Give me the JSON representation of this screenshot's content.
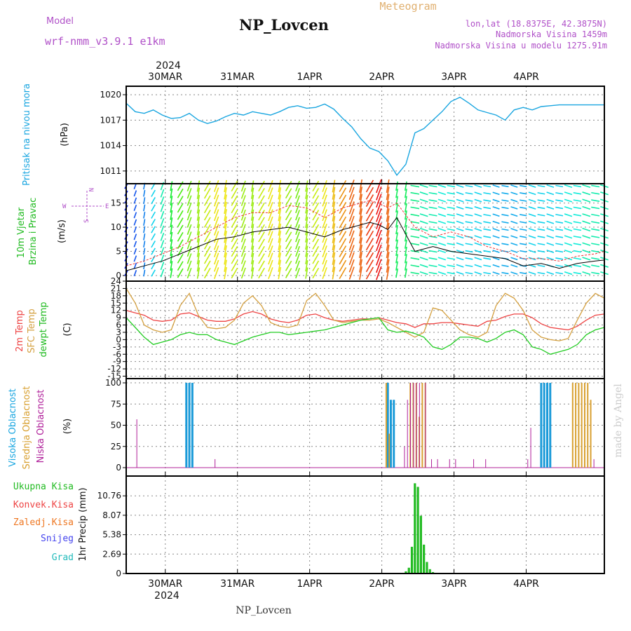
{
  "header": {
    "title": "NP_Lovcen",
    "meteogram_label": "Meteogram",
    "model_label": "Model",
    "model_name": "wrf-nmm_v3.9.1 e1km",
    "lonlat": "lon,lat (18.8375E, 42.3875N)",
    "elevation": "Nadmorska Visina 1459m",
    "model_elevation": "Nadmorska Visina u modelu 1275.91m",
    "footer_name": "NP_Lovcen",
    "credit": "made by Angel"
  },
  "time_axis": {
    "year_label": "2024",
    "day_labels": [
      "30MAR",
      "31MAR",
      "1APR",
      "2APR",
      "3APR",
      "4APR"
    ]
  },
  "colors": {
    "pressure": "#1aa6e0",
    "dewpoint": "#22cc22",
    "temp2m": "#ee4444",
    "sfc_temp": "#d4a040",
    "high_cloud": "#1a9ad8",
    "mid_cloud": "#d8a030",
    "low_cloud": "#b0209a",
    "precip": "#22bb22",
    "wind_speed": "#000000",
    "gust": "#ee3333"
  },
  "chart_data": [
    {
      "type": "line",
      "panel": "pressure",
      "ylabel": "Pritisak na nivou mora",
      "unit": "(hPa)",
      "yticks": [
        "1011",
        "1014",
        "1017",
        "1020"
      ],
      "ylim": [
        1009.5,
        1021
      ],
      "x_hours": [
        0,
        3,
        6,
        9,
        12,
        15,
        18,
        21,
        24,
        27,
        30,
        33,
        36,
        39,
        42,
        45,
        48,
        51,
        54,
        57,
        60,
        63,
        66,
        69,
        72,
        75,
        78,
        81,
        84,
        87,
        90,
        93,
        96,
        99,
        102,
        105,
        108,
        111,
        114,
        117,
        120,
        123,
        126,
        129,
        132,
        135,
        138,
        141,
        144,
        147,
        150,
        153,
        156,
        159
      ],
      "values": [
        1019,
        1018,
        1017.8,
        1018.2,
        1017.6,
        1017.2,
        1017.3,
        1017.8,
        1017,
        1016.6,
        1016.9,
        1017.4,
        1017.8,
        1017.6,
        1018,
        1017.8,
        1017.6,
        1018,
        1018.5,
        1018.7,
        1018.4,
        1018.5,
        1018.9,
        1018.3,
        1017.2,
        1016.2,
        1014.8,
        1013.7,
        1013.3,
        1012.2,
        1010.5,
        1011.8,
        1015.5,
        1016,
        1017,
        1018,
        1019.2,
        1019.7,
        1019,
        1018.2,
        1017.9,
        1017.6,
        1017,
        1018.2,
        1018.5,
        1018.2,
        1018.6,
        1018.7,
        1018.8,
        1018.8,
        1018.8,
        1018.8,
        1018.8,
        1018.8
      ]
    },
    {
      "type": "line",
      "panel": "wind",
      "ylabel": "10m Vjetar Brzina i Pravac",
      "unit": "(m/s)",
      "yticks": [
        "0",
        "5",
        "10",
        "15"
      ],
      "ylim": [
        0,
        19
      ],
      "compass": {
        "north": "N",
        "south": "S",
        "east": "E",
        "west": "W"
      },
      "x_hours": [
        0,
        6,
        12,
        18,
        24,
        30,
        36,
        42,
        48,
        54,
        60,
        66,
        72,
        78,
        81,
        84,
        87,
        90,
        96,
        102,
        108,
        114,
        120,
        126,
        132,
        138,
        144,
        150,
        156,
        159
      ],
      "series": [
        {
          "values": [
            1,
            2,
            3,
            4.5,
            6,
            7.5,
            8,
            9,
            9.5,
            10,
            9,
            8,
            9.5,
            10.5,
            11,
            10.5,
            9.5,
            12,
            5,
            6,
            5,
            4.5,
            4,
            3.5,
            2,
            2.5,
            1.5,
            2.5,
            3,
            3.2
          ]
        },
        {
          "values": [
            2,
            3,
            4.5,
            6,
            8,
            10,
            12,
            13,
            13,
            14.5,
            14,
            12,
            14,
            15,
            15.5,
            15,
            14,
            15,
            10,
            8,
            9,
            8,
            6,
            5,
            3.5,
            3.5,
            3,
            4,
            4.5,
            5
          ]
        }
      ],
      "arrow_speeds": [
        2,
        2.5,
        3,
        4,
        5,
        6.5,
        7.5,
        8,
        8.5,
        9,
        9.5,
        9.5,
        9,
        8.5,
        8.5,
        9,
        9.5,
        9.5,
        8.5,
        8,
        8.5,
        9,
        9.5,
        10,
        10.5,
        11,
        11,
        11.5,
        12,
        11,
        6,
        6,
        5.5,
        5,
        5,
        4.5,
        4.5,
        4,
        4,
        4,
        4,
        3.5,
        3.5,
        3.5,
        3.5,
        4,
        4,
        4,
        4,
        4.5,
        4.5,
        5,
        5,
        5
      ]
    },
    {
      "type": "line",
      "panel": "temperature",
      "ylabel": "2m Temp SFC Temp dewpt Temp",
      "unit": "(C)",
      "yticks": [
        "-15",
        "-12",
        "-9",
        "-6",
        "-3",
        "0",
        "3",
        "6",
        "9",
        "12",
        "15",
        "18",
        "21",
        "24"
      ],
      "ylim": [
        -16,
        24
      ],
      "x_hours": [
        0,
        3,
        6,
        9,
        12,
        15,
        18,
        21,
        24,
        27,
        30,
        33,
        36,
        39,
        42,
        45,
        48,
        51,
        54,
        57,
        60,
        63,
        66,
        69,
        72,
        75,
        78,
        81,
        84,
        87,
        90,
        93,
        96,
        99,
        102,
        105,
        108,
        111,
        114,
        117,
        120,
        123,
        126,
        129,
        132,
        135,
        138,
        141,
        144,
        147,
        150,
        153,
        156,
        159
      ],
      "series": [
        {
          "name": "2m Temp",
          "values": [
            12,
            11,
            10,
            8,
            7.5,
            8,
            10.5,
            11,
            9.5,
            8,
            7.5,
            7.5,
            8.5,
            10.5,
            11.5,
            10.5,
            8.5,
            7.5,
            7,
            8,
            10,
            10.5,
            9,
            8,
            7.5,
            8,
            8.5,
            8.5,
            9,
            8,
            7,
            6.5,
            5,
            6.5,
            6.5,
            7,
            7,
            6.5,
            6,
            5.5,
            7.5,
            8,
            9.5,
            10.5,
            10.5,
            9,
            6.5,
            5,
            4.5,
            4,
            5.5,
            8,
            10,
            10.5
          ]
        },
        {
          "name": "SFC Temp",
          "values": [
            21,
            15,
            6,
            4,
            3,
            4,
            14,
            19,
            10,
            5,
            4.5,
            5,
            8,
            15,
            18,
            14,
            7,
            5.5,
            5,
            6,
            16,
            19,
            14,
            8,
            7,
            7.5,
            8,
            8,
            8.5,
            7,
            5,
            3,
            1,
            3,
            13,
            12,
            8,
            4,
            2,
            1,
            3,
            14,
            19,
            17,
            12,
            4,
            1,
            0,
            -0.5,
            0.5,
            8,
            15,
            19,
            17
          ]
        },
        {
          "name": "dewpt Temp",
          "values": [
            9,
            5,
            1,
            -2,
            -1,
            0,
            2,
            3,
            2,
            2,
            0,
            -1,
            -2,
            -0.5,
            1,
            2,
            3,
            3,
            2,
            2.5,
            3,
            3.5,
            4,
            5,
            6,
            7,
            8,
            8.5,
            9,
            4,
            3,
            3.5,
            2.5,
            1,
            -3,
            -4,
            -2,
            1,
            1,
            0.5,
            -1,
            0.5,
            3,
            4,
            2,
            -3,
            -4,
            -6,
            -5,
            -4,
            -2,
            2,
            4,
            5
          ]
        }
      ]
    },
    {
      "type": "bar",
      "panel": "clouds",
      "ylabel": "Visoka Oblacnost Srednja Oblacnost Niska Oblacnost",
      "unit": "(%)",
      "yticks": [
        "0",
        "25",
        "50",
        "75",
        "100"
      ],
      "ylim": [
        0,
        105
      ],
      "series": [
        {
          "name": "Visoka Oblacnost",
          "x_hours": [
            20,
            21,
            22,
            87,
            88,
            89,
            138,
            139,
            140,
            141
          ],
          "values": [
            100,
            100,
            100,
            100,
            80,
            80,
            100,
            100,
            100,
            100
          ]
        },
        {
          "name": "Srednja Oblacnost",
          "x_hours": [
            86,
            87,
            94,
            95,
            96,
            97,
            98,
            99,
            148,
            149,
            150,
            151,
            152,
            153,
            154
          ],
          "values": [
            100,
            40,
            100,
            100,
            100,
            60,
            100,
            100,
            100,
            100,
            100,
            100,
            100,
            100,
            80
          ]
        },
        {
          "name": "Niska Oblacnost",
          "x_hours": [
            4,
            30,
            93,
            94,
            95,
            96,
            97,
            98,
            100,
            102,
            104,
            108,
            110,
            116,
            120,
            134,
            135,
            156
          ],
          "values": [
            57,
            10,
            25,
            80,
            100,
            100,
            100,
            100,
            100,
            10,
            10,
            10,
            10,
            10,
            10,
            10,
            47,
            10
          ]
        }
      ]
    },
    {
      "type": "bar",
      "panel": "precipitation",
      "ylabel": "1hr Precip (mm)",
      "legend": [
        "Ukupna Kisa",
        "Konvek.Kisa",
        "Zaledj.Kisa",
        "Snijeg",
        "Grad"
      ],
      "yticks": [
        "0",
        "2.69",
        "5.38",
        "8.07",
        "10.76"
      ],
      "ylim": [
        0,
        13.5
      ],
      "x_hours": [
        93,
        94,
        95,
        96,
        97,
        98,
        99,
        100,
        101,
        102,
        103
      ],
      "values": [
        0.3,
        0.8,
        3.7,
        12.5,
        12,
        8,
        4,
        1.6,
        0.6,
        0.2,
        0.1
      ]
    }
  ]
}
